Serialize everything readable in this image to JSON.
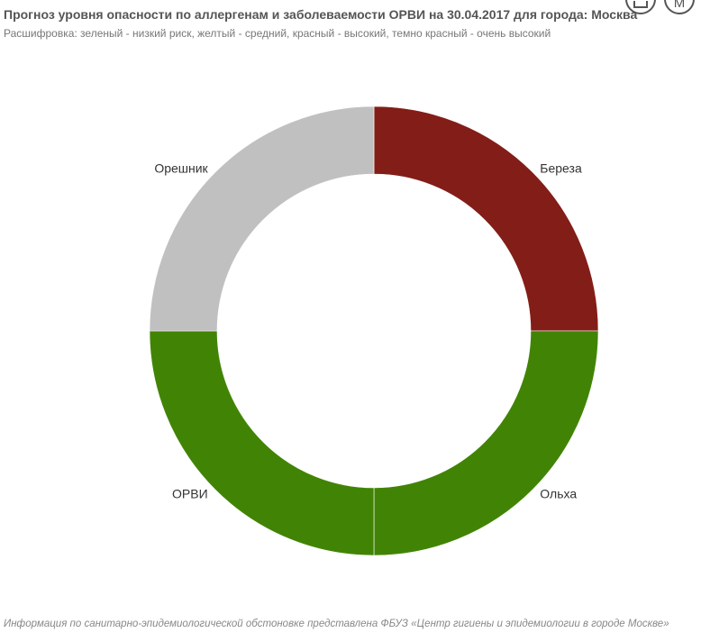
{
  "title": "Прогноз уровня опасности по аллергенам и заболеваемости ОРВИ на 30.04.2017 для города: Москва",
  "subtitle": "Расшифровка: зеленый - низкий риск, желтый - средний, красный - высокий, темно красный - очень высокий",
  "footer": "Информация по санитарно-эпидемиологической обстоновке представлена ФБУЗ «Центр гигиены и эпидемиологии в городе Москве»",
  "toolbar": {
    "export_icon": "export-icon",
    "menu_label": "M"
  },
  "chart_data": {
    "type": "pie",
    "donut": true,
    "labels": [
      "Береза",
      "Ольха",
      "ОРВИ",
      "Орешник"
    ],
    "values": [
      1,
      1,
      1,
      1
    ],
    "colors": [
      "#831D18",
      "#418405",
      "#418405",
      "#C0C0C0"
    ],
    "legend": "none"
  }
}
